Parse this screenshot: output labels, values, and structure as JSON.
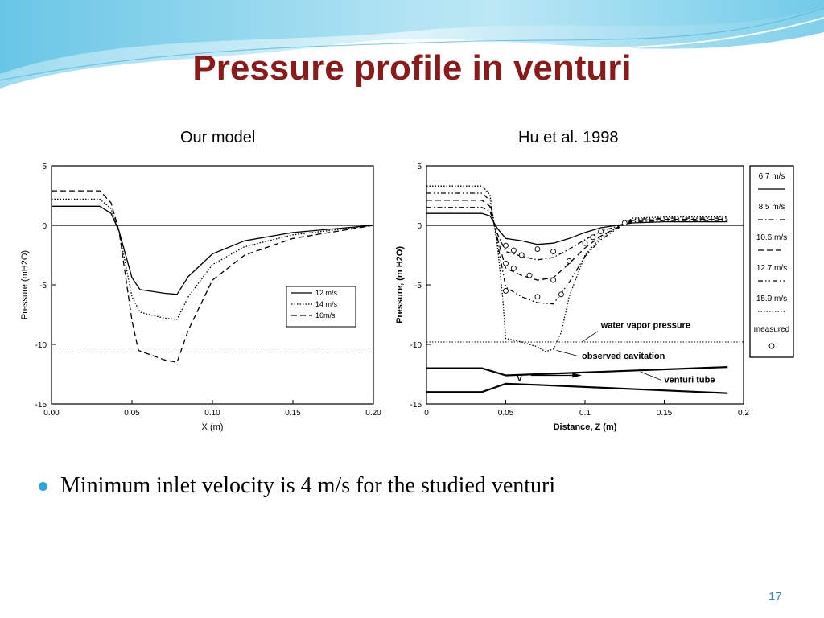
{
  "slide": {
    "title": "Pressure profile in venturi",
    "bullet": "Minimum inlet velocity is 4 m/s for the studied venturi",
    "page_number": "17",
    "colors": {
      "title": "#8b1a1a",
      "accent": "#2fa4d6",
      "wave_light": "#bfe8f4",
      "wave_mid": "#7fd0ea"
    }
  },
  "chart_data": [
    {
      "type": "line",
      "caption": "Our model",
      "xlabel": "X (m)",
      "ylabel": "Pressure (mH2O)",
      "xlim": [
        0,
        0.2
      ],
      "ylim": [
        -15,
        5
      ],
      "xticks": [
        "0.00",
        "0.05",
        "0.10",
        "0.15",
        "0.20"
      ],
      "yticks": [
        "5",
        "0",
        "-5",
        "-10",
        "-15"
      ],
      "grid": false,
      "legend_position": "right",
      "series": [
        {
          "name": "12 m/s",
          "style": "solid",
          "x": [
            0,
            0.03,
            0.037,
            0.042,
            0.05,
            0.055,
            0.07,
            0.078,
            0.085,
            0.1,
            0.12,
            0.15,
            0.2
          ],
          "y": [
            1.6,
            1.6,
            1.0,
            -0.5,
            -4.4,
            -5.4,
            -5.7,
            -5.8,
            -4.3,
            -2.4,
            -1.3,
            -0.6,
            0
          ]
        },
        {
          "name": "14 m/s",
          "style": "dotted",
          "x": [
            0,
            0.03,
            0.037,
            0.042,
            0.05,
            0.055,
            0.07,
            0.078,
            0.085,
            0.1,
            0.12,
            0.15,
            0.2
          ],
          "y": [
            2.2,
            2.2,
            1.4,
            -0.5,
            -6.0,
            -7.3,
            -7.8,
            -7.9,
            -6.0,
            -3.3,
            -1.8,
            -0.8,
            0
          ]
        },
        {
          "name": "16m/s",
          "style": "dashed",
          "x": [
            0,
            0.03,
            0.037,
            0.042,
            0.05,
            0.054,
            0.07,
            0.078,
            0.085,
            0.1,
            0.12,
            0.15,
            0.2
          ],
          "y": [
            2.9,
            2.9,
            1.9,
            -0.5,
            -8.0,
            -10.5,
            -11.3,
            -11.5,
            -8.8,
            -4.6,
            -2.5,
            -1.1,
            0
          ]
        }
      ],
      "reference_lines": [
        {
          "y": 0,
          "style": "solid"
        },
        {
          "y": -10.3,
          "style": "dotted"
        }
      ]
    },
    {
      "type": "line",
      "caption": "Hu et al. 1998",
      "xlabel": "Distance, Z (m)",
      "ylabel": "Pressure, (m H2O)",
      "xlim": [
        0,
        0.2
      ],
      "ylim": [
        -15,
        5
      ],
      "xticks": [
        "0",
        "0.05",
        "0.1",
        "0.15",
        "0.2"
      ],
      "yticks": [
        "5",
        "0",
        "-5",
        "-10",
        "-15"
      ],
      "grid": false,
      "legend_position": "right",
      "series": [
        {
          "name": "6.7 m/s",
          "style": "solid",
          "x": [
            0,
            0.035,
            0.04,
            0.045,
            0.05,
            0.06,
            0.07,
            0.08,
            0.09,
            0.1,
            0.11,
            0.12,
            0.13,
            0.15,
            0.19
          ],
          "y": [
            1.0,
            1.0,
            0.8,
            -0.3,
            -1.1,
            -1.3,
            -1.6,
            -1.5,
            -1.1,
            -0.6,
            -0.2,
            0.0,
            0.2,
            0.3,
            0.3
          ]
        },
        {
          "name": "8.5 m/s",
          "style": "dash-dot",
          "x": [
            0,
            0.035,
            0.04,
            0.045,
            0.05,
            0.06,
            0.07,
            0.08,
            0.09,
            0.1,
            0.11,
            0.12,
            0.13,
            0.15,
            0.19
          ],
          "y": [
            1.5,
            1.5,
            1.2,
            -0.8,
            -2.2,
            -2.6,
            -2.9,
            -2.7,
            -2.0,
            -1.2,
            -0.5,
            -0.1,
            0.3,
            0.4,
            0.4
          ]
        },
        {
          "name": "10.6 m/s",
          "style": "dashed",
          "x": [
            0,
            0.035,
            0.04,
            0.045,
            0.05,
            0.06,
            0.07,
            0.08,
            0.09,
            0.1,
            0.11,
            0.12,
            0.13,
            0.15,
            0.19
          ],
          "y": [
            2.1,
            2.1,
            1.6,
            -1.2,
            -3.6,
            -4.2,
            -4.6,
            -4.4,
            -3.2,
            -1.9,
            -0.9,
            -0.2,
            0.4,
            0.5,
            0.5
          ]
        },
        {
          "name": "12.7 m/s",
          "style": "dash-dot-dot",
          "x": [
            0,
            0.035,
            0.04,
            0.045,
            0.05,
            0.06,
            0.07,
            0.08,
            0.09,
            0.1,
            0.11,
            0.12,
            0.13,
            0.15,
            0.19
          ],
          "y": [
            2.7,
            2.7,
            2.1,
            -1.6,
            -5.2,
            -6.0,
            -6.5,
            -6.6,
            -4.8,
            -2.6,
            -1.2,
            -0.3,
            0.5,
            0.6,
            0.6
          ]
        },
        {
          "name": "15.9 m/s",
          "style": "dotted",
          "x": [
            0,
            0.035,
            0.04,
            0.045,
            0.048,
            0.05,
            0.06,
            0.07,
            0.075,
            0.08,
            0.085,
            0.09,
            0.1,
            0.11,
            0.12,
            0.13,
            0.15,
            0.19
          ],
          "y": [
            3.3,
            3.3,
            2.6,
            -2.0,
            -6.0,
            -9.5,
            -9.8,
            -10.2,
            -10.6,
            -10.4,
            -9.0,
            -6.0,
            -2.5,
            -1.0,
            -0.2,
            0.6,
            0.7,
            0.7
          ]
        }
      ],
      "measured": {
        "name": "measured",
        "x": [
          0.05,
          0.05,
          0.05,
          0.055,
          0.055,
          0.06,
          0.065,
          0.07,
          0.07,
          0.08,
          0.08,
          0.085,
          0.09,
          0.1,
          0.105,
          0.11,
          0.125
        ],
        "y": [
          -1.7,
          -3.2,
          -5.5,
          -2.1,
          -3.6,
          -2.5,
          -4.2,
          -2.0,
          -6.0,
          -2.2,
          -4.6,
          -5.8,
          -3.0,
          -1.5,
          -1.0,
          -0.5,
          0.2
        ]
      },
      "reference_lines": [
        {
          "y": 0,
          "style": "solid"
        },
        {
          "y": -9.8,
          "style": "dotted"
        }
      ],
      "annotations": [
        "water vapor pressure",
        "observed cavitation",
        "venturi tube",
        "V"
      ]
    }
  ]
}
